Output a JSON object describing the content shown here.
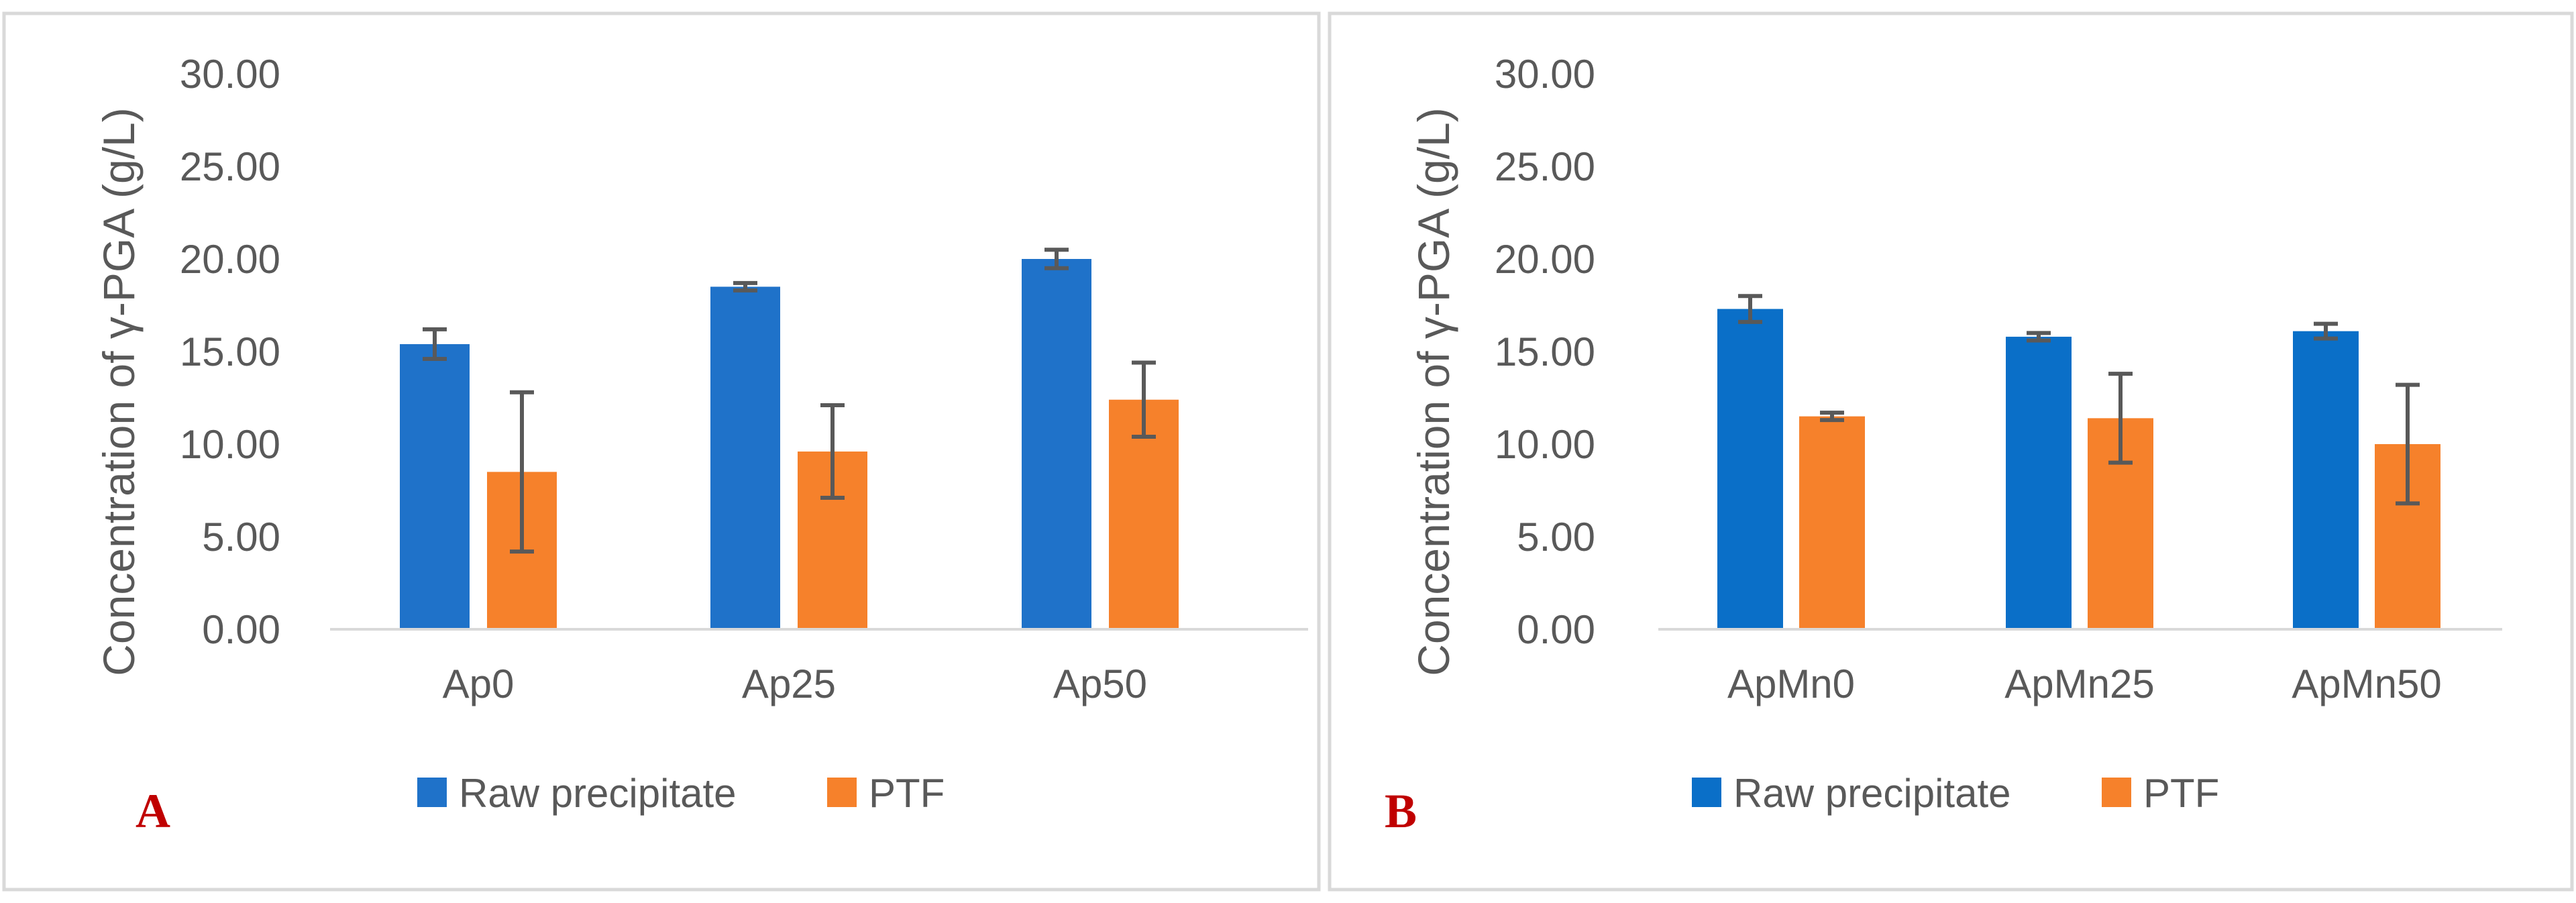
{
  "chart_data": [
    {
      "type": "bar",
      "panel_label": "A",
      "ylabel": "Concentration of γ-PGA (g/L)",
      "ylim": [
        0,
        30
      ],
      "yticks": [
        0,
        5,
        10,
        15,
        20,
        25,
        30
      ],
      "ytick_labels": [
        "0.00",
        "5.00",
        "10.00",
        "15.00",
        "20.00",
        "25.00",
        "30.00"
      ],
      "categories": [
        "Ap0",
        "Ap25",
        "Ap50"
      ],
      "series": [
        {
          "name": "Raw precipitate",
          "color": "#1f72c9",
          "values": [
            15.4,
            18.5,
            20.0
          ],
          "errors": [
            0.8,
            0.2,
            0.5
          ]
        },
        {
          "name": "PTF",
          "color": "#f6812b",
          "values": [
            8.5,
            9.6,
            12.4
          ],
          "errors": [
            4.3,
            2.5,
            2.0
          ]
        }
      ],
      "legend": "bottom"
    },
    {
      "type": "bar",
      "panel_label": "B",
      "ylabel": "Concentration of γ-PGA (g/L)",
      "ylim": [
        0,
        30
      ],
      "yticks": [
        0,
        5,
        10,
        15,
        20,
        25,
        30
      ],
      "ytick_labels": [
        "0.00",
        "5.00",
        "10.00",
        "15.00",
        "20.00",
        "25.00",
        "30.00"
      ],
      "categories": [
        "ApMn0",
        "ApMn25",
        "ApMn50"
      ],
      "series": [
        {
          "name": "Raw precipitate",
          "color": "#0a6fc8",
          "values": [
            17.3,
            15.8,
            16.1
          ],
          "errors": [
            0.7,
            0.2,
            0.4
          ]
        },
        {
          "name": "PTF",
          "color": "#f6812b",
          "values": [
            11.5,
            11.4,
            10.0
          ],
          "errors": [
            0.2,
            2.4,
            3.2
          ]
        }
      ],
      "legend": "bottom"
    }
  ]
}
